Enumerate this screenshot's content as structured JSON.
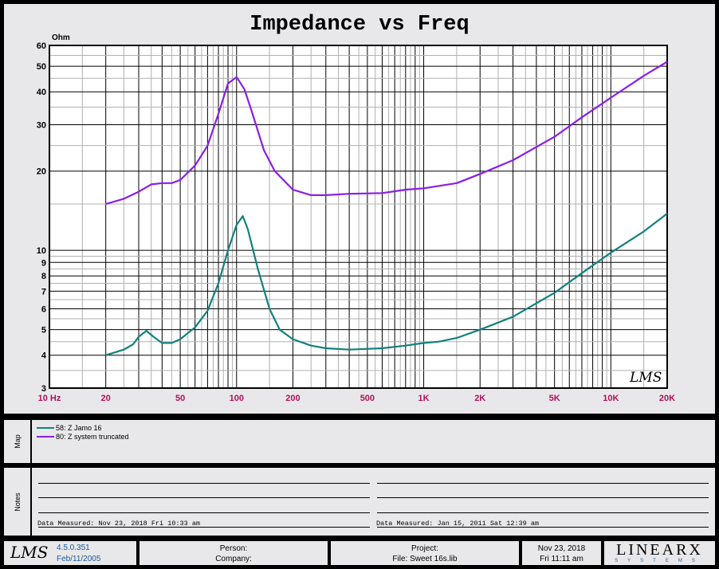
{
  "chart_data": {
    "type": "line",
    "title": "Impedance vs Freq",
    "ylabel": "Ohm",
    "xlabel": "",
    "xscale": "log",
    "yscale": "log",
    "xlim": [
      10,
      20000
    ],
    "ylim": [
      3,
      60
    ],
    "grid": true,
    "x_ticks": [
      {
        "v": 10,
        "label": "10 Hz"
      },
      {
        "v": 20,
        "label": "20"
      },
      {
        "v": 50,
        "label": "50"
      },
      {
        "v": 100,
        "label": "100"
      },
      {
        "v": 200,
        "label": "200"
      },
      {
        "v": 500,
        "label": "500"
      },
      {
        "v": 1000,
        "label": "1K"
      },
      {
        "v": 2000,
        "label": "2K"
      },
      {
        "v": 5000,
        "label": "5K"
      },
      {
        "v": 10000,
        "label": "10K"
      },
      {
        "v": 20000,
        "label": "20K"
      }
    ],
    "y_ticks": [
      {
        "v": 3,
        "label": "3"
      },
      {
        "v": 4,
        "label": "4"
      },
      {
        "v": 5,
        "label": "5"
      },
      {
        "v": 6,
        "label": "6"
      },
      {
        "v": 7,
        "label": "7"
      },
      {
        "v": 8,
        "label": "8"
      },
      {
        "v": 9,
        "label": "9"
      },
      {
        "v": 10,
        "label": "10"
      },
      {
        "v": 20,
        "label": "20"
      },
      {
        "v": 30,
        "label": "30"
      },
      {
        "v": 40,
        "label": "40"
      },
      {
        "v": 50,
        "label": "50"
      },
      {
        "v": 60,
        "label": "60"
      }
    ],
    "series": [
      {
        "name": "58: Z Jamo 16",
        "color": "#138080",
        "x": [
          20,
          25,
          28,
          30,
          33,
          36,
          40,
          45,
          50,
          60,
          70,
          80,
          90,
          100,
          108,
          115,
          130,
          150,
          170,
          200,
          250,
          300,
          400,
          600,
          800,
          1000,
          1200,
          1500,
          2000,
          3000,
          5000,
          7000,
          10000,
          15000,
          20000
        ],
        "y": [
          4.0,
          4.2,
          4.4,
          4.7,
          4.95,
          4.7,
          4.45,
          4.45,
          4.6,
          5.1,
          5.9,
          7.5,
          10,
          12.5,
          13.5,
          12,
          8.5,
          6,
          5,
          4.6,
          4.35,
          4.25,
          4.2,
          4.25,
          4.35,
          4.45,
          4.5,
          4.65,
          5.0,
          5.6,
          6.9,
          8.2,
          9.8,
          11.8,
          13.8
        ]
      },
      {
        "name": "80: Z system truncated",
        "color": "#8a1ee6",
        "x": [
          20,
          25,
          30,
          35,
          40,
          45,
          50,
          60,
          70,
          80,
          90,
          100,
          110,
          120,
          140,
          160,
          200,
          250,
          300,
          400,
          600,
          800,
          1000,
          1500,
          2000,
          3000,
          5000,
          7000,
          10000,
          15000,
          20000
        ],
        "y": [
          15,
          15.7,
          16.7,
          17.8,
          18,
          18,
          18.5,
          21,
          25,
          33,
          43,
          45.5,
          41,
          34,
          24,
          20,
          17,
          16.2,
          16.2,
          16.4,
          16.5,
          17,
          17.2,
          18,
          19.5,
          22,
          27,
          32,
          38,
          46,
          52
        ]
      }
    ]
  },
  "map": {
    "label": "Map"
  },
  "notes": {
    "label": "Notes",
    "measured_left": "Data Measured: Nov 23, 2018  Fri 10:33 am",
    "measured_right": "Data Measured: Jan 15, 2011  Sat 12:39 am"
  },
  "footer": {
    "logo": "LMS",
    "version": "4.5.0.351",
    "version_date": "Feb/11/2005",
    "person": "Person:",
    "company": "Company:",
    "project": "Project:",
    "file": "File: Sweet 16s.lib",
    "date": "Nov 23, 2018",
    "time": "Fri 11:11 am",
    "brand": "LINEARX",
    "brand_sub": "SYSTEMS"
  },
  "watermark": "LMS"
}
